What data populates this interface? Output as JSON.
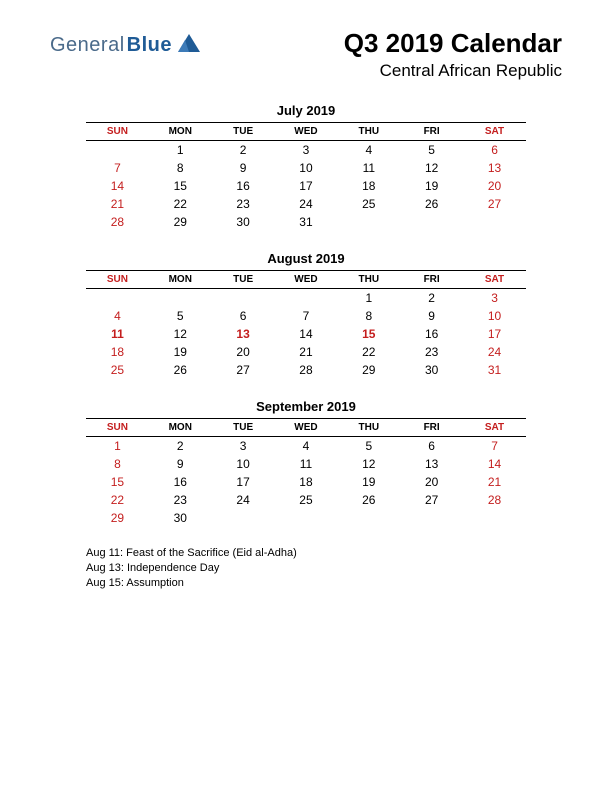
{
  "logo": {
    "text1": "General",
    "text2": "Blue"
  },
  "title": "Q3 2019 Calendar",
  "subtitle": "Central African Republic",
  "day_headers": [
    "SUN",
    "MON",
    "TUE",
    "WED",
    "THU",
    "FRI",
    "SAT"
  ],
  "weekend_color": "#c41e1e",
  "holiday_color": "#c41e1e",
  "months": [
    {
      "name": "July 2019",
      "weeks": [
        [
          "",
          "1",
          "2",
          "3",
          "4",
          "5",
          "6"
        ],
        [
          "7",
          "8",
          "9",
          "10",
          "11",
          "12",
          "13"
        ],
        [
          "14",
          "15",
          "16",
          "17",
          "18",
          "19",
          "20"
        ],
        [
          "21",
          "22",
          "23",
          "24",
          "25",
          "26",
          "27"
        ],
        [
          "28",
          "29",
          "30",
          "31",
          "",
          "",
          ""
        ]
      ],
      "holidays": []
    },
    {
      "name": "August 2019",
      "weeks": [
        [
          "",
          "",
          "",
          "",
          "1",
          "2",
          "3"
        ],
        [
          "4",
          "5",
          "6",
          "7",
          "8",
          "9",
          "10"
        ],
        [
          "11",
          "12",
          "13",
          "14",
          "15",
          "16",
          "17"
        ],
        [
          "18",
          "19",
          "20",
          "21",
          "22",
          "23",
          "24"
        ],
        [
          "25",
          "26",
          "27",
          "28",
          "29",
          "30",
          "31"
        ]
      ],
      "holidays": [
        "11",
        "13",
        "15"
      ]
    },
    {
      "name": "September 2019",
      "weeks": [
        [
          "1",
          "2",
          "3",
          "4",
          "5",
          "6",
          "7"
        ],
        [
          "8",
          "9",
          "10",
          "11",
          "12",
          "13",
          "14"
        ],
        [
          "15",
          "16",
          "17",
          "18",
          "19",
          "20",
          "21"
        ],
        [
          "22",
          "23",
          "24",
          "25",
          "26",
          "27",
          "28"
        ],
        [
          "29",
          "30",
          "",
          "",
          "",
          "",
          ""
        ]
      ],
      "holidays": []
    }
  ],
  "holiday_list": [
    "Aug 11: Feast of the Sacrifice (Eid al-Adha)",
    "Aug 13: Independence Day",
    "Aug 15: Assumption"
  ]
}
